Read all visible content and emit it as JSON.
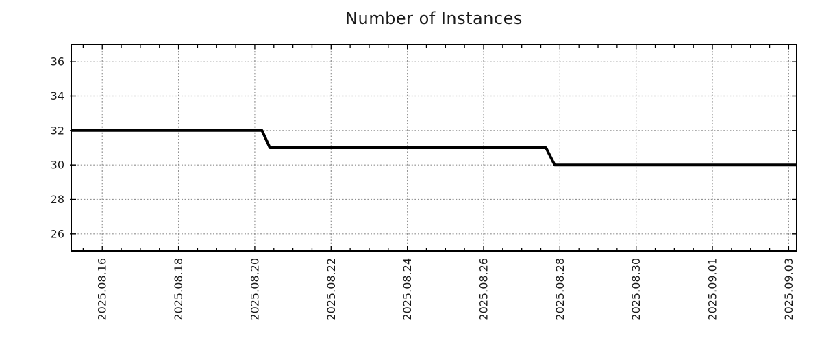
{
  "page": {
    "background_color": "#ffffff"
  },
  "chart_data": {
    "type": "line",
    "style": "step",
    "title": "Number of Instances",
    "xlabel": "",
    "ylabel": "",
    "x_tick_labels": [
      "2025.08.16",
      "2025.08.18",
      "2025.08.20",
      "2025.08.22",
      "2025.08.24",
      "2025.08.26",
      "2025.08.28",
      "2025.08.30",
      "2025.09.01",
      "2025.09.03"
    ],
    "y_ticks": [
      26,
      28,
      30,
      32,
      34,
      36
    ],
    "ylim": [
      25,
      37
    ],
    "xlim": [
      "2025-08-15T04:30",
      "2025-09-03T05:00"
    ],
    "x_major_tick_interval_days": 2,
    "x_minor_tick_interval_hours": 12,
    "grid": true,
    "legend": false,
    "colors": {
      "line": "#000000",
      "grid": "#909090",
      "axis": "#000000",
      "title": "#1a1a1a",
      "tick_label": "#1a1a1a",
      "background": "#ffffff"
    },
    "series": [
      {
        "name": "instances",
        "points": [
          [
            "2025-08-15T04:30",
            32
          ],
          [
            "2025-08-20T04:30",
            32
          ],
          [
            "2025-08-20T09:30",
            31
          ],
          [
            "2025-08-27T15:15",
            31
          ],
          [
            "2025-08-27T20:45",
            30
          ],
          [
            "2025-09-03T05:00",
            30
          ]
        ]
      }
    ]
  }
}
